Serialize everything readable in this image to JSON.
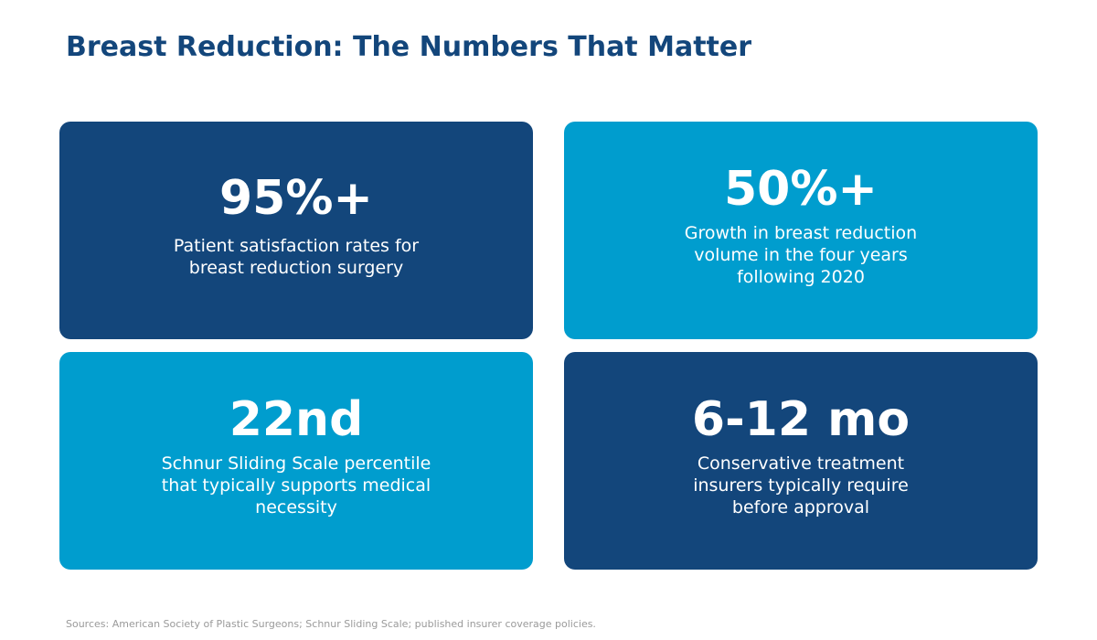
{
  "title": "Breast Reduction: The Numbers That Matter",
  "colors": {
    "title": "#13467b",
    "dark_card": "#13467b",
    "light_card": "#009dce",
    "card_text": "#ffffff",
    "sources_text": "#9a9a9a"
  },
  "cards": [
    {
      "value": "95%+",
      "description": "Patient satisfaction rates for breast reduction surgery",
      "color": "dark"
    },
    {
      "value": "50%+",
      "description": "Growth in breast reduction volume in the four years following 2020",
      "color": "light"
    },
    {
      "value": "22nd",
      "description": "Schnur Sliding Scale percentile that typically supports medical necessity",
      "color": "light"
    },
    {
      "value": "6-12 mo",
      "description": "Conservative treatment insurers typically require before approval",
      "color": "dark"
    }
  ],
  "sources": "Sources: American Society of Plastic Surgeons; Schnur Sliding Scale; published insurer coverage policies."
}
